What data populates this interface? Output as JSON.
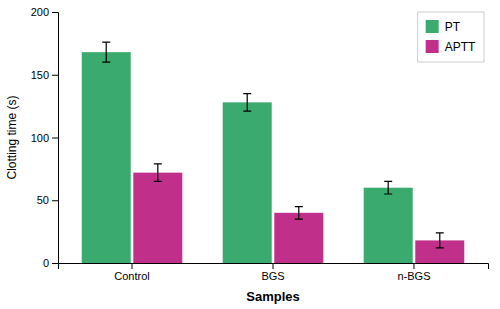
{
  "chart_data": {
    "type": "bar",
    "xlabel": "Samples",
    "ylabel": "Clotting time (s)",
    "categories": [
      "Control",
      "BGS",
      "n-BGS"
    ],
    "series": [
      {
        "name": "PT",
        "color": "#3BAA6E",
        "values": [
          168,
          128,
          60
        ],
        "errors": [
          8,
          7,
          5
        ]
      },
      {
        "name": "APTT",
        "color": "#C0308A",
        "values": [
          72,
          40,
          18
        ],
        "errors": [
          7,
          5,
          6
        ]
      }
    ],
    "ylim": [
      0,
      200
    ],
    "yticks": [
      0,
      50,
      100,
      150,
      200
    ],
    "legend": "upper right",
    "grid": false
  }
}
